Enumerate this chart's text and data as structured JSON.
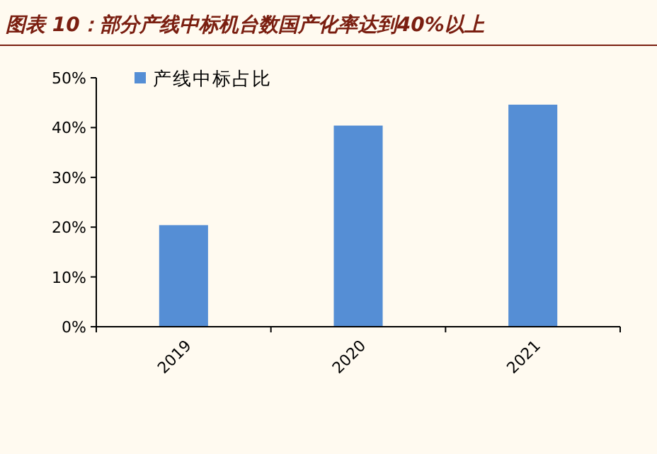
{
  "chart_data": {
    "type": "bar",
    "title": "图表 10：部分产线中标机台数国产化率达到40%以上",
    "categories": [
      "2019",
      "2020",
      "2021"
    ],
    "series": [
      {
        "name": "产线中标占比",
        "color": "#558ed5",
        "values": [
          20.4,
          40.4,
          44.6
        ]
      }
    ],
    "ylim": [
      0,
      50
    ],
    "yticks": [
      {
        "value": 0,
        "label": "0%"
      },
      {
        "value": 10,
        "label": "10%"
      },
      {
        "value": 20,
        "label": "20%"
      },
      {
        "value": 30,
        "label": "30%"
      },
      {
        "value": 40,
        "label": "40%"
      },
      {
        "value": 50,
        "label": "50%"
      }
    ],
    "legend": "top",
    "grid": false
  }
}
